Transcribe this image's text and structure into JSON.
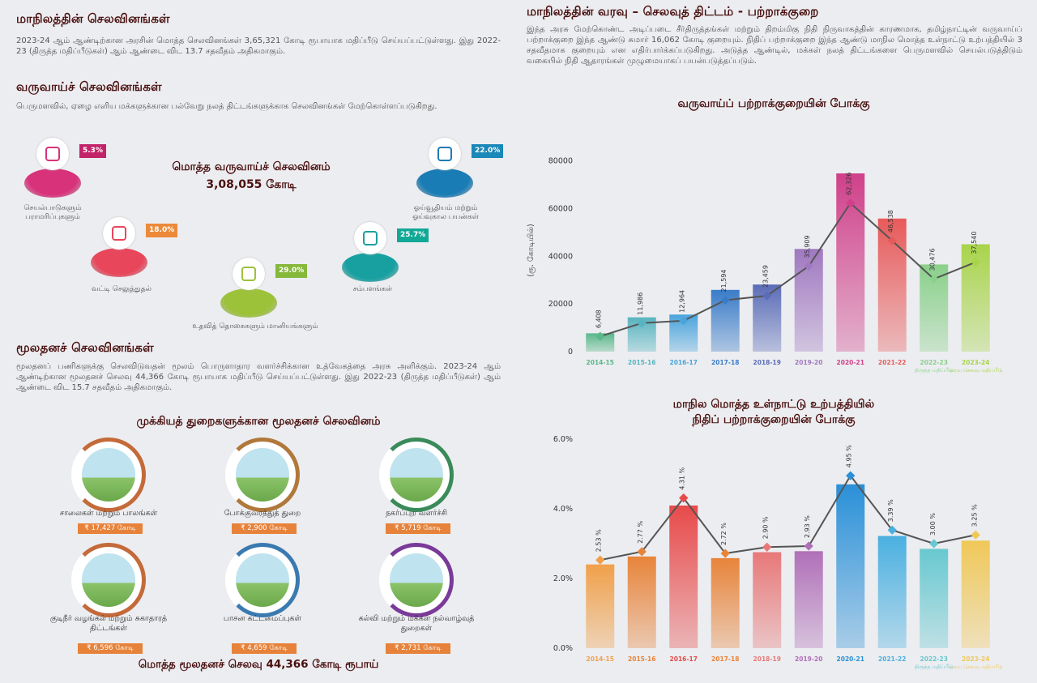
{
  "left": {
    "sec1_title": "மாநிலத்தின் செலவினங்கள்",
    "sec1_text": "2023-24 ஆம் ஆண்டிற்கான அரசின் மொத்த செலவினங்கள் 3,65,321 கோடி ரூபாயாக மதிப்பீடு செய்யப்பட்டுள்ளது. இது 2022-23 (திருத்த மதிப்பீடுகள்) ஆம் ஆண்டை விட 13.7 சதவீதம் அதிகமாகும்.",
    "sec2_title": "வருவாய்ச் செலவினங்கள்",
    "sec2_text": "பெருமளவில், ஏழை எளிய மக்களுக்கான பல்வேறு நலத் திட்டங்களுக்காக செலவினங்கள் மேற்கொள்ளப்படுகிறது.",
    "total_title": "மொத்த வருவாய்ச் செலவினம்",
    "total_value": "3,08,055 கோடி",
    "items": [
      {
        "label": "செயல்பாடுகளும் பராமரிப்புகளும்",
        "pct": "5.3%",
        "color": "#d8327a",
        "tag": "#c2246a",
        "icon": "document-icon"
      },
      {
        "label": "வட்டி செலுத்துதல்",
        "pct": "18.0%",
        "color": "#e8465a",
        "tag": "#ec8a3a",
        "icon": "interest-icon"
      },
      {
        "label": "உதவித் தொகைகளும் மானியங்களும்",
        "pct": "29.0%",
        "color": "#9cc23a",
        "tag": "#86b83a",
        "icon": "subsidy-icon"
      },
      {
        "label": "சம்பளங்கள்",
        "pct": "25.7%",
        "color": "#18a0a0",
        "tag": "#12a896",
        "icon": "salary-icon"
      },
      {
        "label": "ஓய்வூதியம் மற்றும் ஓய்வுகால பயன்கள்",
        "pct": "22.0%",
        "color": "#1a7cb4",
        "tag": "#1a88b8",
        "icon": "pension-icon"
      }
    ],
    "sec3_title": "மூலதனச் செலவினங்கள்",
    "sec3_text": "மூலதனப் பணிகளுக்கு செலவிடுவதன் மூலம் பொருளாதார வளர்ச்சிக்கான உத்வேகத்தை அரசு அளிக்கும். 2023-24 ஆம் ஆண்டிற்கான மூலதனச் செலவு 44,366 கோடி ரூபாயாக மதிப்பீடு செய்யப்பட்டுள்ளது. இது 2022-23 (திருத்த மதிப்பீடுகள்) ஆம் ஆண்டை விட 15.7 சதவீதம் அதிகமாகும்.",
    "cap_title": "முக்கியத் துறைகளுக்கான மூலதனச் செலவினம்",
    "cap_items": [
      {
        "label": "சாலைகள் மற்றும் பாலங்கள்",
        "value": "₹ 17,427 கோடி",
        "icon": "bridge-icon",
        "ring": "#c46a3a"
      },
      {
        "label": "போக்குவரத்துத் துறை",
        "value": "₹ 2,900 கோடி",
        "icon": "bus-icon",
        "ring": "#b0783a"
      },
      {
        "label": "நகர்ப்புற வளர்ச்சி",
        "value": "₹ 5,719 கோடி",
        "icon": "city-icon",
        "ring": "#3a8a5a"
      },
      {
        "label": "குடிநீர் வழங்கல் மற்றும் சுகாதாரத் திட்டங்கள்",
        "value": "₹ 6,596 கோடி",
        "icon": "water-icon",
        "ring": "#c46a3a"
      },
      {
        "label": "பாசன கட்டமைப்புகள்",
        "value": "₹ 4,659 கோடி",
        "icon": "irrigation-icon",
        "ring": "#3a7ab0"
      },
      {
        "label": "கல்வி மற்றும் மக்கள் நல்வாழ்வுத் துறைகள்",
        "value": "₹ 2,731 கோடி",
        "icon": "education-icon",
        "ring": "#7a3a9a"
      }
    ],
    "cap_total": "மொத்த மூலதனச் செலவு 44,366 கோடி ரூபாய்"
  },
  "right": {
    "title": "மாநிலத்தின் வரவு – செலவுத் திட்டம் - பற்றாக்குறை",
    "text": "இந்த அரசு மேற்கொண்ட அடிப்படை சீர்திருத்தங்கள் மற்றும் திறம்மிகு நிதி நிருவாகத்தின் காரணமாக, தமிழ்நாட்டின் வருவாய்ப் பற்றாக்குறை இந்த ஆண்டு சுமார் 16,062 கோடி குறையும். நிதிப் பற்றாக்குறை இந்த ஆண்டு மாநில மொத்த உள்நாட்டு உற்பத்தியில் 3 சதவீதமாக குறையும் என எதிர்பார்க்கப்படுகிறது. அடுத்த ஆண்டில், மக்கள் நலத் திட்டங்களை பெருமளவில் செயல்படுத்திடும் வகையில் நிதி ஆதாரங்கள் முழுமையாகப் பயன்படுத்தப்படும்."
  },
  "chart_data": [
    {
      "type": "bar",
      "title": "வருவாய்ப் பற்றாக்குறையின் போக்கு",
      "ylabel": "(ரூ. கோடியில்)",
      "ylim": [
        0,
        85000
      ],
      "yticks": [
        "0",
        "20000",
        "40000",
        "60000",
        "80000"
      ],
      "categories": [
        "2014-15",
        "2015-16",
        "2016-17",
        "2017-18",
        "2018-19",
        "2019-20",
        "2020-21",
        "2021-22",
        "2022-23 திருத்த மதிப்பீடு",
        "2023-24 வரவு செலவு மதிப்பீடு"
      ],
      "values": [
        6408,
        11986,
        12964,
        21594,
        23459,
        35909,
        62326,
        46538,
        30476,
        37540
      ],
      "labels": [
        "6,408",
        "11,986",
        "12,964",
        "21,594",
        "23,459",
        "35,909",
        "62,326",
        "46,538",
        "30,476",
        "37,540"
      ],
      "colors": [
        "#5ab88a",
        "#58b4c0",
        "#4aa4dc",
        "#3a7cc8",
        "#5a6cb8",
        "#a078c0",
        "#d0408a",
        "#e85a5a",
        "#8ad08a",
        "#a8d44a"
      ]
    },
    {
      "type": "bar",
      "title": "மாநில மொத்த உள்நாட்டு உற்பத்தியில் நிதிப் பற்றாக்குறையின் போக்கு",
      "title_line1": "மாநில மொத்த உள்நாட்டு உற்பத்தியில்",
      "title_line2": "நிதிப் பற்றாக்குறையின் போக்கு",
      "ylim": [
        0,
        6
      ],
      "yticks": [
        "0.0%",
        "2.0%",
        "4.0%",
        "6.0%"
      ],
      "categories": [
        "2014-15",
        "2015-16",
        "2016-17",
        "2017-18",
        "2018-19",
        "2019-20",
        "2020-21",
        "2021-22",
        "2022-23 திருத்த மதிப்பீடு",
        "2023-24 வரவு செலவு மதிப்பீடு"
      ],
      "values": [
        2.53,
        2.77,
        4.31,
        2.72,
        2.9,
        2.93,
        4.95,
        3.39,
        3.0,
        3.25
      ],
      "labels": [
        "2.53 %",
        "2.77 %",
        "4.31 %",
        "2.72 %",
        "2.90 %",
        "2.93 %",
        "4.95 %",
        "3.39 %",
        "3.00 %",
        "3.25 %"
      ],
      "colors": [
        "#f0a04a",
        "#e8843a",
        "#e84a4a",
        "#e8843a",
        "#e87878",
        "#b070b8",
        "#2a90d8",
        "#4ab0e0",
        "#68c8d0",
        "#f0c858"
      ]
    }
  ]
}
